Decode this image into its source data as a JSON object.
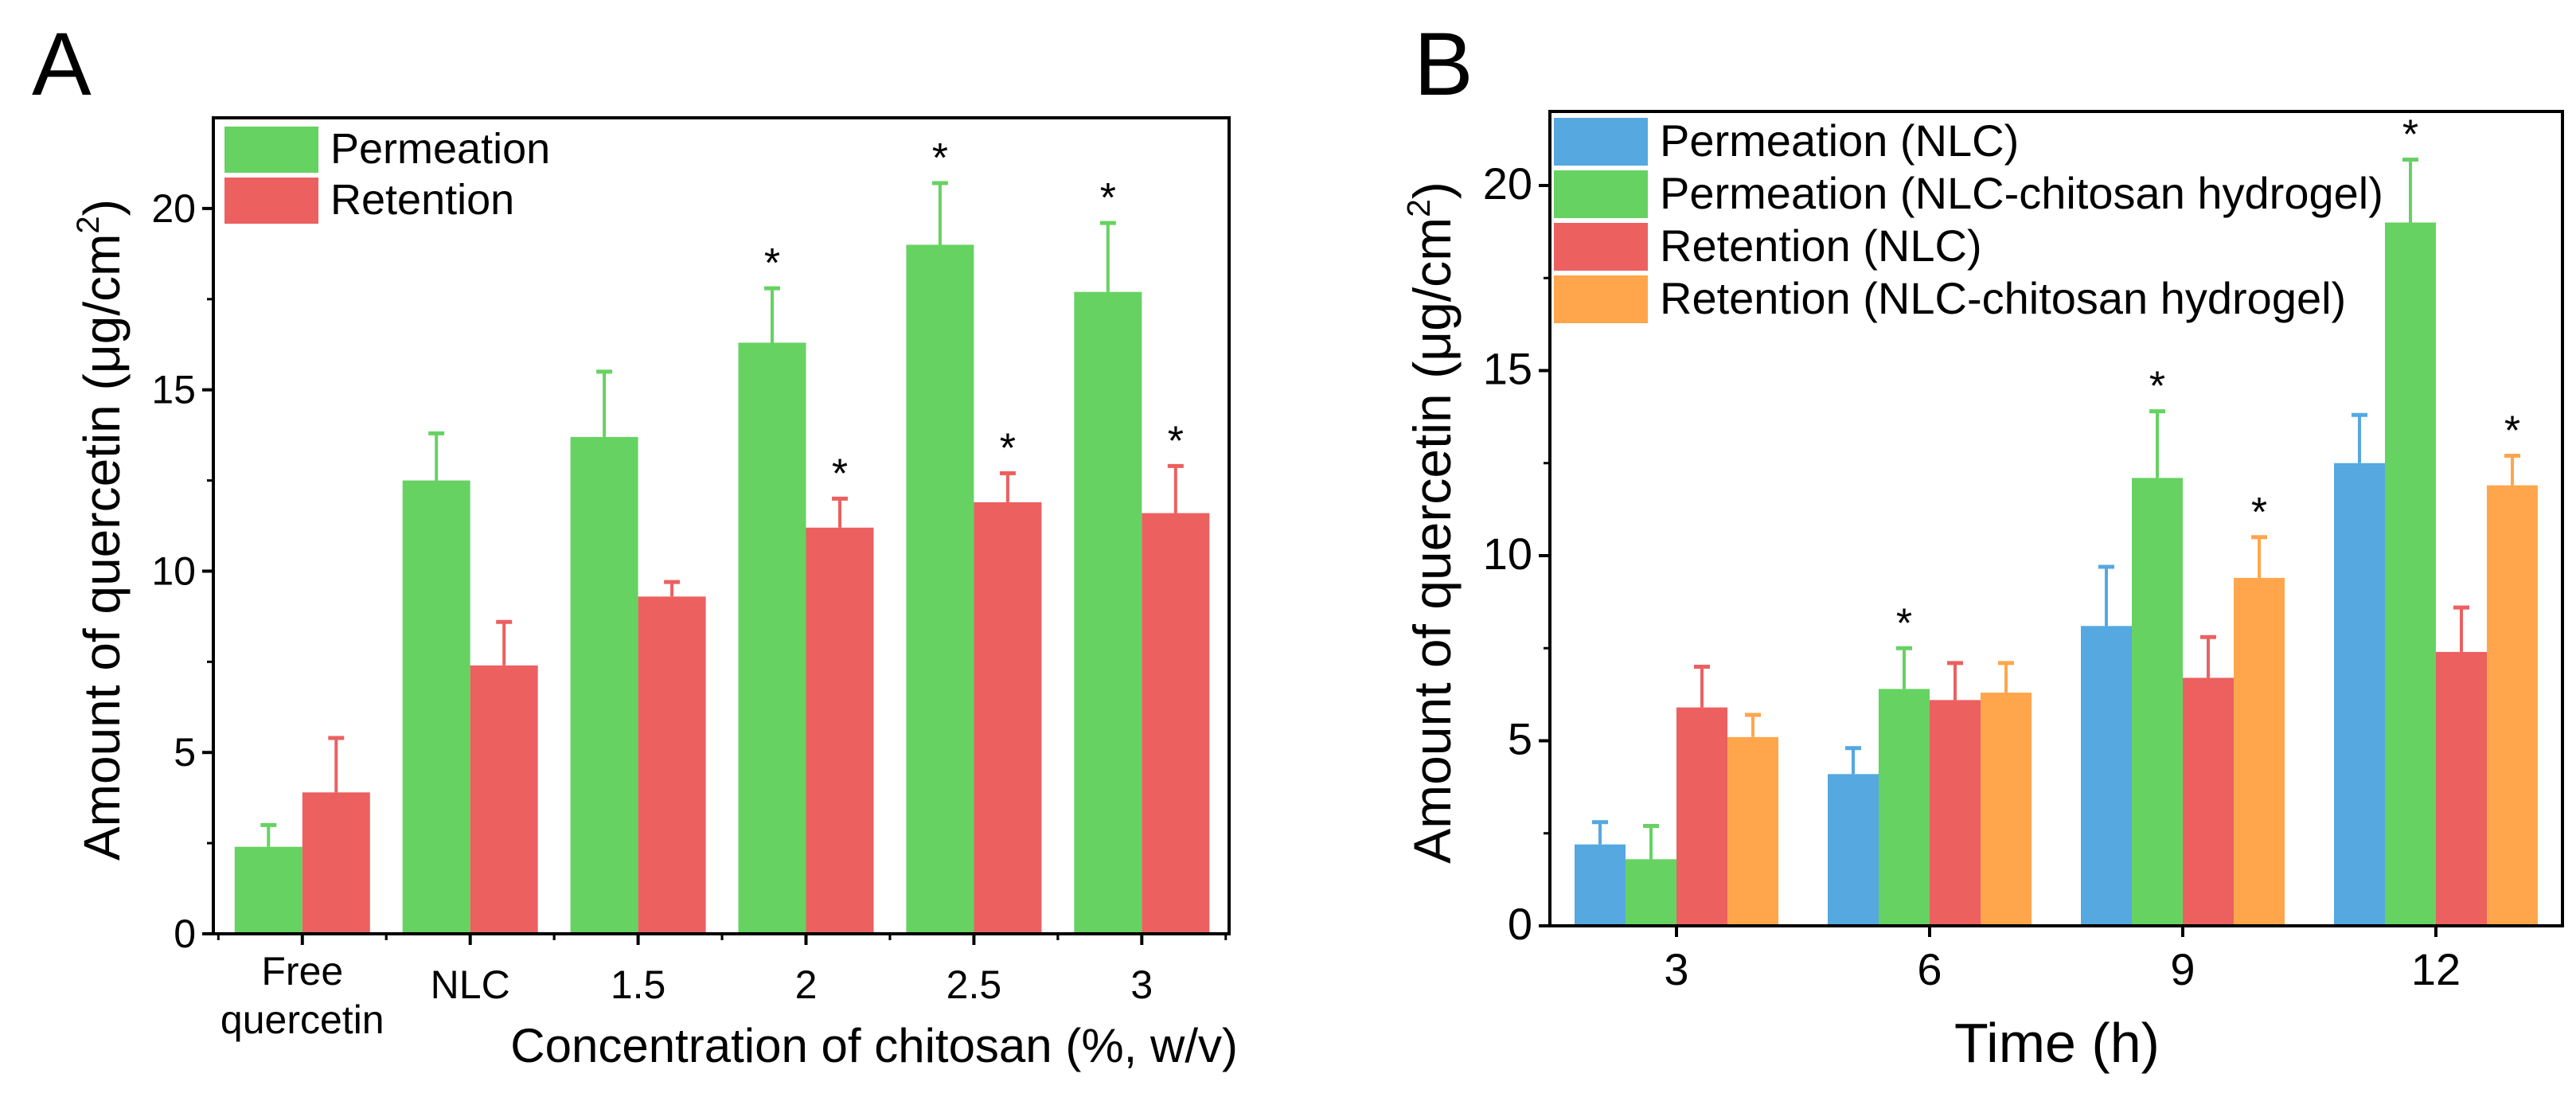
{
  "chart_data": [
    {
      "panel_label": "A",
      "type": "bar",
      "xlabel": "Concentration of chitosan (%, w/v)",
      "ylabel": "Amount of quercetin (μg/cm²)",
      "ylabel_main": "Amount of quercetin (μg/cm",
      "ylabel_sup": "2",
      "ylabel_end": ")",
      "categories": [
        [
          "Free",
          "quercetin"
        ],
        [
          "NLC"
        ],
        [
          "1.5"
        ],
        [
          "2"
        ],
        [
          "2.5"
        ],
        [
          "3"
        ]
      ],
      "ylim": [
        0,
        22.5
      ],
      "yticks": [
        0,
        5,
        10,
        15,
        20
      ],
      "legend_position": "top-left",
      "series": [
        {
          "name": "Permeation",
          "color": "#66d262",
          "values": [
            2.4,
            12.5,
            13.7,
            16.3,
            19.0,
            17.7
          ],
          "errors": [
            0.6,
            1.3,
            1.8,
            1.5,
            1.7,
            1.9
          ],
          "significant": [
            false,
            false,
            false,
            true,
            true,
            true
          ]
        },
        {
          "name": "Retention",
          "color": "#ec6060",
          "values": [
            3.9,
            7.4,
            9.3,
            11.2,
            11.9,
            11.6
          ],
          "errors": [
            1.5,
            1.2,
            0.4,
            0.8,
            0.8,
            1.3
          ],
          "significant": [
            false,
            false,
            false,
            true,
            true,
            true
          ]
        }
      ],
      "significance_mark": "*"
    },
    {
      "panel_label": "B",
      "type": "bar",
      "xlabel": "Time (h)",
      "ylabel": "Amount of quercetin (μg/cm²)",
      "ylabel_main": "Amount of quercetin (μg/cm",
      "ylabel_sup": "2",
      "ylabel_end": ")",
      "categories": [
        [
          "3"
        ],
        [
          "6"
        ],
        [
          "9"
        ],
        [
          "12"
        ]
      ],
      "ylim": [
        0,
        22
      ],
      "yticks": [
        0,
        5,
        10,
        15,
        20
      ],
      "legend_position": "top-left",
      "series": [
        {
          "name": "Permeation (NLC)",
          "color": "#55a8e0",
          "values": [
            2.2,
            4.1,
            8.1,
            12.5
          ],
          "errors": [
            0.6,
            0.7,
            1.6,
            1.3
          ],
          "significant": [
            false,
            false,
            false,
            false
          ]
        },
        {
          "name": "Permeation (NLC-chitosan hydrogel)",
          "color": "#66d262",
          "values": [
            1.8,
            6.4,
            12.1,
            19.0
          ],
          "errors": [
            0.9,
            1.1,
            1.8,
            1.7
          ],
          "significant": [
            false,
            true,
            true,
            true
          ]
        },
        {
          "name": "Retention (NLC)",
          "color": "#ec6060",
          "values": [
            5.9,
            6.1,
            6.7,
            7.4
          ],
          "errors": [
            1.1,
            1.0,
            1.1,
            1.2
          ],
          "significant": [
            false,
            false,
            false,
            false
          ]
        },
        {
          "name": "Retention (NLC-chitosan hydrogel)",
          "color": "#ffa64d",
          "values": [
            5.1,
            6.3,
            9.4,
            11.9
          ],
          "errors": [
            0.6,
            0.8,
            1.1,
            0.8
          ],
          "significant": [
            false,
            false,
            true,
            true
          ]
        }
      ],
      "significance_mark": "*"
    }
  ]
}
